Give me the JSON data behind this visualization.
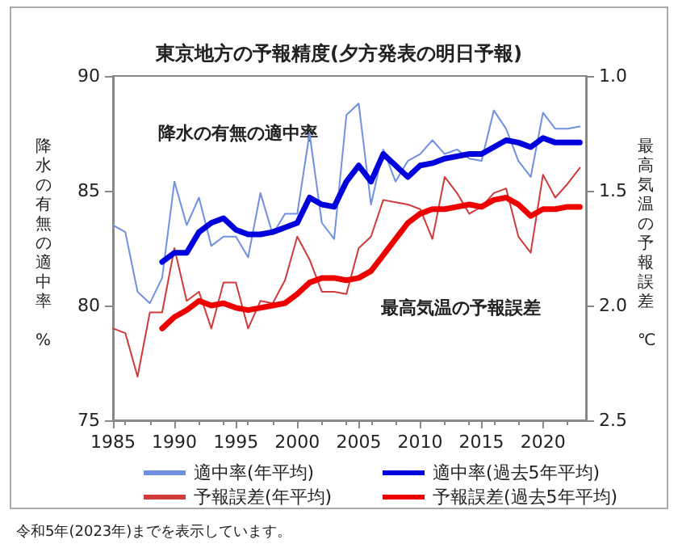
{
  "chart_data": {
    "type": "line",
    "title": "東京地方の予報精度(夕方発表の明日予報)",
    "ylabel": "降水の有無の適中率 %",
    "y2label": "最高気温の予報誤差 ℃",
    "annotations": [
      "降水の有無の適中率",
      "最高気温の予報誤差",
      "令和5年(2023年)までを表示しています。"
    ],
    "xlim": [
      1985,
      2023.5
    ],
    "xticks": [
      1985,
      1990,
      1995,
      2000,
      2005,
      2010,
      2015,
      2020
    ],
    "ylim": [
      75,
      90
    ],
    "yticks": [
      75,
      80,
      85,
      90
    ],
    "y2lim": [
      2.5,
      1.0
    ],
    "y2ticks": [
      {
        "value": 1.0,
        "label": "1.0"
      },
      {
        "value": 1.5,
        "label": "1.5"
      },
      {
        "value": 2.0,
        "label": "2.0"
      },
      {
        "value": 2.5,
        "label": "2.5"
      }
    ],
    "grid": false,
    "legend": "bottom",
    "marker": "none",
    "series": [
      {
        "name": "適中率(年平均)",
        "color": "#7090e0",
        "x": [
          1985,
          1986,
          1987,
          1988,
          1989,
          1990,
          1991,
          1992,
          1993,
          1994,
          1995,
          1996,
          1997,
          1998,
          1999,
          2000,
          2001,
          2002,
          2003,
          2004,
          2005,
          2006,
          2007,
          2008,
          2009,
          2010,
          2011,
          2012,
          2013,
          2014,
          2015,
          2016,
          2017,
          2018,
          2019,
          2020,
          2021,
          2022,
          2023
        ],
        "values": [
          83.5,
          83.2,
          80.6,
          80.1,
          81.2,
          85.4,
          83.5,
          84.7,
          82.6,
          83.0,
          83.0,
          82.1,
          84.9,
          83.1,
          84.0,
          84.0,
          87.5,
          83.6,
          82.9,
          88.3,
          88.8,
          84.4,
          86.8,
          85.4,
          86.3,
          86.6,
          87.2,
          86.6,
          86.8,
          86.4,
          86.3,
          88.5,
          87.7,
          86.3,
          85.6,
          88.4,
          87.7,
          87.7,
          87.8
        ]
      },
      {
        "name": "適中率(過去5年平均)",
        "color": "#0000dd",
        "x": [
          1989,
          1990,
          1991,
          1992,
          1993,
          1994,
          1995,
          1996,
          1997,
          1998,
          1999,
          2000,
          2001,
          2002,
          2003,
          2004,
          2005,
          2006,
          2007,
          2008,
          2009,
          2010,
          2011,
          2012,
          2013,
          2014,
          2015,
          2016,
          2017,
          2018,
          2019,
          2020,
          2021,
          2022,
          2023
        ],
        "values": [
          81.9,
          82.3,
          82.3,
          83.2,
          83.6,
          83.8,
          83.3,
          83.1,
          83.1,
          83.2,
          83.4,
          83.6,
          84.7,
          84.4,
          84.3,
          85.4,
          86.1,
          85.4,
          86.6,
          86.1,
          85.6,
          86.1,
          86.2,
          86.4,
          86.5,
          86.6,
          86.6,
          86.9,
          87.2,
          87.1,
          86.9,
          87.3,
          87.1,
          87.1,
          87.1
        ]
      },
      {
        "name": "予報誤差(年平均)",
        "color": "#d03a3a",
        "axis": "y2",
        "x": [
          1985,
          1986,
          1987,
          1988,
          1989,
          1990,
          1991,
          1992,
          1993,
          1994,
          1995,
          1996,
          1997,
          1998,
          1999,
          2000,
          2001,
          2002,
          2003,
          2004,
          2005,
          2006,
          2007,
          2008,
          2009,
          2010,
          2011,
          2012,
          2013,
          2014,
          2015,
          2016,
          2017,
          2018,
          2019,
          2020,
          2021,
          2022,
          2023
        ],
        "values": [
          2.1,
          2.12,
          2.31,
          2.03,
          2.03,
          1.75,
          1.98,
          1.94,
          2.1,
          1.9,
          1.9,
          2.1,
          1.98,
          1.99,
          1.89,
          1.7,
          1.8,
          1.94,
          1.94,
          1.95,
          1.75,
          1.7,
          1.54,
          1.55,
          1.56,
          1.58,
          1.71,
          1.44,
          1.51,
          1.6,
          1.57,
          1.51,
          1.49,
          1.7,
          1.77,
          1.43,
          1.53,
          1.47,
          1.4
        ]
      },
      {
        "name": "予報誤差(過去5年平均)",
        "color": "#ee0000",
        "axis": "y2",
        "x": [
          1989,
          1990,
          1991,
          1992,
          1993,
          1994,
          1995,
          1996,
          1997,
          1998,
          1999,
          2000,
          2001,
          2002,
          2003,
          2004,
          2005,
          2006,
          2007,
          2008,
          2009,
          2010,
          2011,
          2012,
          2013,
          2014,
          2015,
          2016,
          2017,
          2018,
          2019,
          2020,
          2021,
          2022,
          2023
        ],
        "values": [
          2.1,
          2.05,
          2.02,
          1.98,
          2.0,
          1.99,
          2.01,
          2.02,
          2.01,
          2.0,
          1.99,
          1.95,
          1.9,
          1.88,
          1.88,
          1.89,
          1.88,
          1.85,
          1.78,
          1.71,
          1.64,
          1.6,
          1.58,
          1.58,
          1.57,
          1.56,
          1.57,
          1.54,
          1.53,
          1.56,
          1.61,
          1.58,
          1.58,
          1.57,
          1.57
        ]
      }
    ]
  }
}
